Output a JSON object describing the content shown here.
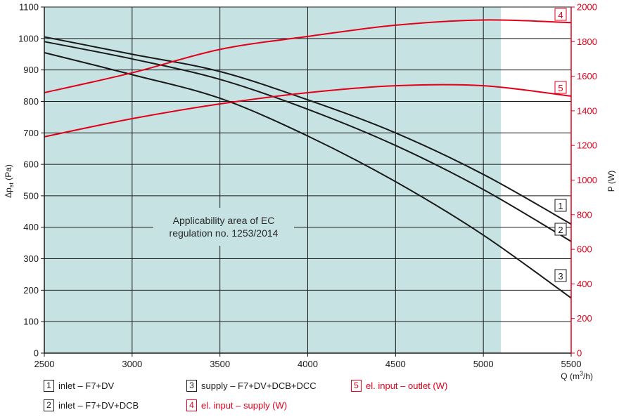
{
  "chart_data": {
    "type": "line",
    "xlabel": "Q (m³/h)",
    "ylabel_left": "Δp_st (Pa)",
    "ylabel_right": "P (W)",
    "xlim": [
      2500,
      5500
    ],
    "ylim_left": [
      0,
      1100
    ],
    "ylim_right": [
      0,
      2000
    ],
    "x_ticks": [
      "2500",
      "3000",
      "3500",
      "4000",
      "4500",
      "5000",
      "5500"
    ],
    "y_left_ticks": [
      "0",
      "100",
      "200",
      "300",
      "400",
      "500",
      "600",
      "700",
      "800",
      "900",
      "1000",
      "1100"
    ],
    "y_right_ticks": [
      "0",
      "200",
      "400",
      "600",
      "800",
      "1000",
      "1200",
      "1400",
      "1600",
      "1800",
      "2000"
    ],
    "grid": true,
    "shaded_area": {
      "label_line1": "Applicability area of EC",
      "label_line2": "regulation no. 1253/2014",
      "x_max": 5100
    },
    "series": [
      {
        "id": "1",
        "name": "inlet – F7+DV",
        "axis": "left",
        "color": "#1a1a1a",
        "x": [
          2500,
          3000,
          3500,
          4000,
          4500,
          5000,
          5500
        ],
        "y": [
          1005,
          950,
          895,
          805,
          700,
          568,
          410
        ]
      },
      {
        "id": "2",
        "name": "inlet – F7+DV+DCB",
        "axis": "left",
        "color": "#1a1a1a",
        "x": [
          2500,
          3000,
          3500,
          4000,
          4500,
          5000,
          5500
        ],
        "y": [
          990,
          935,
          870,
          775,
          660,
          520,
          355
        ]
      },
      {
        "id": "3",
        "name": "supply – F7+DV+DCB+DCC",
        "axis": "left",
        "color": "#1a1a1a",
        "x": [
          2500,
          3000,
          3500,
          4000,
          4500,
          5000,
          5500
        ],
        "y": [
          955,
          885,
          810,
          690,
          545,
          375,
          175
        ]
      },
      {
        "id": "4",
        "name": "el. input – supply (W)",
        "axis": "right",
        "color": "#e2001a",
        "x": [
          2500,
          3000,
          3500,
          4000,
          4500,
          5000,
          5500
        ],
        "y": [
          1505,
          1620,
          1755,
          1830,
          1895,
          1925,
          1910
        ]
      },
      {
        "id": "5",
        "name": "el. input – outlet (W)",
        "axis": "right",
        "color": "#e2001a",
        "x": [
          2500,
          3000,
          3500,
          4000,
          4500,
          5000,
          5500
        ],
        "y": [
          1250,
          1355,
          1440,
          1505,
          1545,
          1545,
          1485
        ]
      }
    ],
    "legend": [
      {
        "id": "1",
        "label": "inlet – F7+DV",
        "color": "black"
      },
      {
        "id": "2",
        "label": "inlet – F7+DV+DCB",
        "color": "black"
      },
      {
        "id": "3",
        "label": "supply – F7+DV+DCB+DCC",
        "color": "black"
      },
      {
        "id": "4",
        "label": "el. input – supply (W)",
        "color": "red"
      },
      {
        "id": "5",
        "label": "el. input – outlet (W)",
        "color": "red"
      }
    ]
  },
  "colors": {
    "axis": "#1a1a1a",
    "red": "#e2001a",
    "area": "#c6e2e2",
    "grid": "#1a1a1a"
  }
}
